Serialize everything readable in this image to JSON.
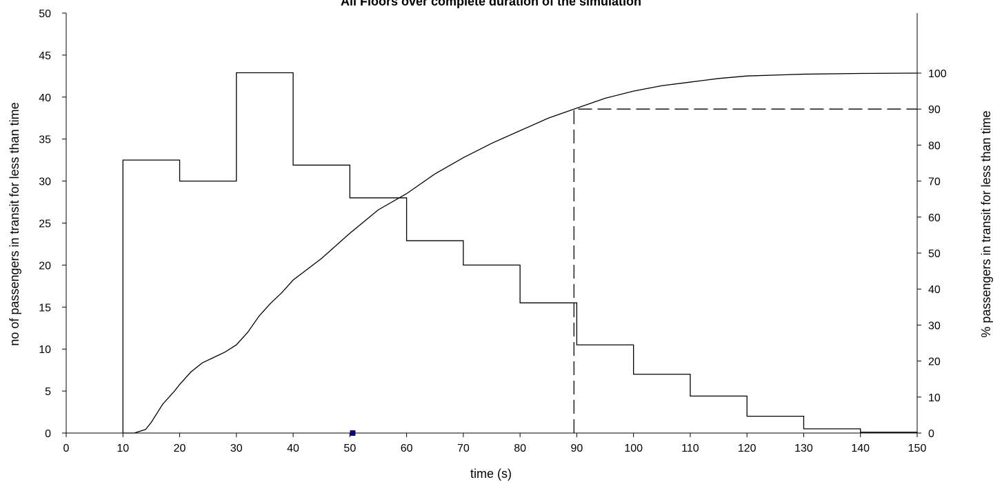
{
  "chart_data": {
    "type": "line",
    "title": "All Floors over complete duration of the simulation",
    "xlabel": "time (s)",
    "ylabel_left": "no of passengers in transit for less than time",
    "ylabel_right": "% passengers in transit for less than time",
    "xlim": [
      0,
      150
    ],
    "ylim_left": [
      0,
      50
    ],
    "ylim_right": [
      0,
      100
    ],
    "x_ticks": [
      0,
      10,
      20,
      30,
      40,
      50,
      60,
      70,
      80,
      90,
      100,
      110,
      120,
      130,
      140,
      150
    ],
    "y_ticks_left": [
      0,
      5,
      10,
      15,
      20,
      25,
      30,
      35,
      40,
      45,
      50
    ],
    "y_ticks_right": [
      0,
      10,
      20,
      30,
      40,
      50,
      60,
      70,
      80,
      90,
      100
    ],
    "grid": false,
    "series": [
      {
        "axis": "left",
        "style": "step",
        "bins": [
          [
            10,
            20
          ],
          [
            20,
            30
          ],
          [
            30,
            40
          ],
          [
            40,
            50
          ],
          [
            50,
            60
          ],
          [
            60,
            70
          ],
          [
            70,
            80
          ],
          [
            80,
            90
          ],
          [
            90,
            100
          ],
          [
            100,
            110
          ],
          [
            110,
            120
          ],
          [
            120,
            130
          ],
          [
            130,
            140
          ],
          [
            140,
            150
          ]
        ],
        "values": [
          32.5,
          30,
          42.9,
          31.9,
          28,
          22.9,
          20,
          15.5,
          10.5,
          7,
          4.4,
          2,
          0.5,
          0.1
        ]
      },
      {
        "axis": "right",
        "style": "line",
        "x": [
          10,
          12,
          14,
          15,
          17,
          19,
          20,
          22,
          24,
          26,
          28,
          30,
          32,
          34,
          36,
          38,
          40,
          45,
          50,
          55,
          60,
          65,
          70,
          75,
          80,
          85,
          89.5,
          95,
          100,
          105,
          110,
          115,
          120,
          130,
          140,
          150
        ],
        "values": [
          0,
          0,
          1,
          3,
          8,
          11.5,
          13.5,
          17,
          19.5,
          21,
          22.5,
          24.5,
          28,
          32.5,
          36,
          39,
          42.5,
          48.5,
          55.5,
          62,
          66.5,
          72,
          76.5,
          80.5,
          84,
          87.5,
          90,
          93,
          95,
          96.5,
          97.5,
          98.5,
          99.2,
          99.7,
          99.9,
          100
        ]
      },
      {
        "axis": "right",
        "style": "dashed",
        "x": [
          89.5,
          89.5,
          150
        ],
        "values": [
          0,
          90,
          90
        ]
      }
    ],
    "annotations": [
      {
        "type": "marker",
        "x": 50.5,
        "y": 0,
        "color": "#000099",
        "shape": "square"
      }
    ]
  }
}
